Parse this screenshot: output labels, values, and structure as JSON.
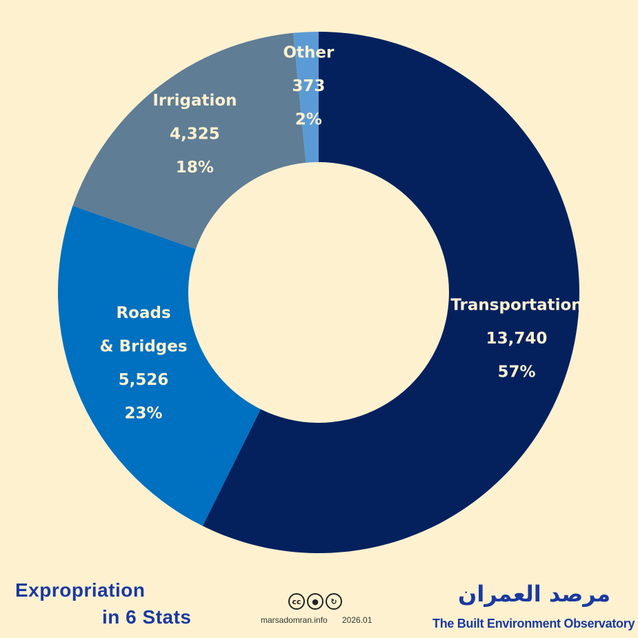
{
  "chart_data": {
    "type": "pie",
    "title": "",
    "categories": [
      "Transportation",
      "Roads & Bridges",
      "Irrigation",
      "Other"
    ],
    "values": [
      13740,
      5526,
      4325,
      373
    ],
    "value_labels": [
      "13,740",
      "5,526",
      "4,325",
      "373"
    ],
    "percent_labels": [
      "57%",
      "23%",
      "18%",
      "2%"
    ],
    "label_lines": [
      [
        "Transportation"
      ],
      [
        "Roads",
        "& Bridges"
      ],
      [
        "Irrigation"
      ],
      [
        "Other"
      ]
    ],
    "colors": [
      "#04215e",
      "#0070c0",
      "#5f7d95",
      "#5b9bd5"
    ],
    "donut": true,
    "start": "top, clockwise"
  },
  "footer": {
    "title_line1": "Expropriation",
    "title_line2": "in 6 Stats",
    "site": "marsadomran.info",
    "date": "2026.01",
    "brand_arabic": "مرصد العمران",
    "brand_english": "The Built Environment Observatory",
    "cc_badges": [
      "cc",
      "by",
      "sa"
    ]
  },
  "colors": {
    "background": "#fdf1d0",
    "label_text": "#fdf1d0",
    "brand": "#1a3aa0"
  }
}
